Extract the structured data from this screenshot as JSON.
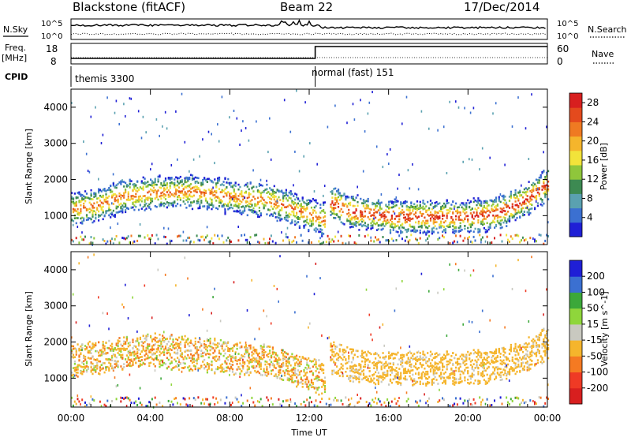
{
  "header": {
    "station": "Blackstone (fitACF)",
    "beam": "Beam 22",
    "date": "17/Dec/2014"
  },
  "top_panels": {
    "nsky_label": "N.Sky",
    "nsearch_label": "N.Search",
    "noise_ticks": [
      "10^5",
      "10^0"
    ],
    "freq_label": "Freq.",
    "freq_unit": "[MHz]",
    "freq_ticks": [
      "18",
      "8"
    ],
    "nave_label": "Nave",
    "nave_ticks": [
      "60",
      "0"
    ],
    "cpid_label": "CPID",
    "cpid_modes": [
      {
        "label": "themis 3300",
        "start_hour": 0,
        "end_hour": 12.3
      },
      {
        "label": "normal (fast) 151",
        "start_hour": 12.3,
        "end_hour": 24
      }
    ]
  },
  "axes": {
    "xlabel": "Time UT",
    "x_ticks": [
      "00:00",
      "04:00",
      "08:00",
      "12:00",
      "16:00",
      "20:00",
      "00:00"
    ],
    "x_tick_hours": [
      0,
      4,
      8,
      12,
      16,
      20,
      24
    ],
    "ylabel": "Slant Range [km]",
    "y_ticks": [
      1000,
      2000,
      3000,
      4000
    ],
    "ylim": [
      200,
      4500
    ]
  },
  "chart_data": [
    {
      "type": "heatmap",
      "name": "Power",
      "colorbar_label": "Power [dB]",
      "colorbar_ticks": [
        4,
        8,
        12,
        16,
        20,
        24,
        28
      ],
      "clim": [
        0,
        30
      ],
      "colors": [
        "#1f1fd6",
        "#3b70d1",
        "#5aa1b0",
        "#3d8a52",
        "#8fc63b",
        "#f2e33a",
        "#f5b52c",
        "#ef7a22",
        "#e44a1d",
        "#d81f1f"
      ],
      "bands": [
        {
          "hour": [
            0,
            1.2,
            2.5,
            4,
            6,
            8,
            10,
            11.5,
            12.8
          ],
          "range": [
            1200,
            1300,
            1550,
            1650,
            1700,
            1550,
            1450,
            1150,
            900
          ]
        },
        {
          "hour": [
            13,
            14,
            16,
            18,
            20,
            21.5,
            23,
            24
          ],
          "range": [
            1400,
            1150,
            1000,
            980,
            1000,
            1100,
            1500,
            1900
          ]
        }
      ]
    },
    {
      "type": "heatmap",
      "name": "Velocity",
      "colorbar_label": "Velocity [m s^-1]",
      "colorbar_ticks": [
        -200,
        -100,
        -50,
        -15,
        15,
        50,
        100,
        200
      ],
      "clim": [
        -250,
        250
      ],
      "colors": [
        "#d81f1f",
        "#ef3a25",
        "#f57a22",
        "#f5b52c",
        "#c9c9c0",
        "#8fd63b",
        "#3ca83a",
        "#3b70d1",
        "#1f1fd6"
      ],
      "bands": [
        {
          "hour": [
            0,
            1.2,
            2.5,
            4,
            6,
            8,
            10,
            11.5,
            12.8
          ],
          "range": [
            1500,
            1600,
            1700,
            1800,
            1700,
            1600,
            1500,
            1200,
            1000
          ]
        },
        {
          "hour": [
            13,
            14,
            16,
            18,
            20,
            21.5,
            23,
            24
          ],
          "range": [
            1600,
            1400,
            1300,
            1300,
            1300,
            1400,
            1700,
            2000
          ]
        }
      ]
    }
  ]
}
